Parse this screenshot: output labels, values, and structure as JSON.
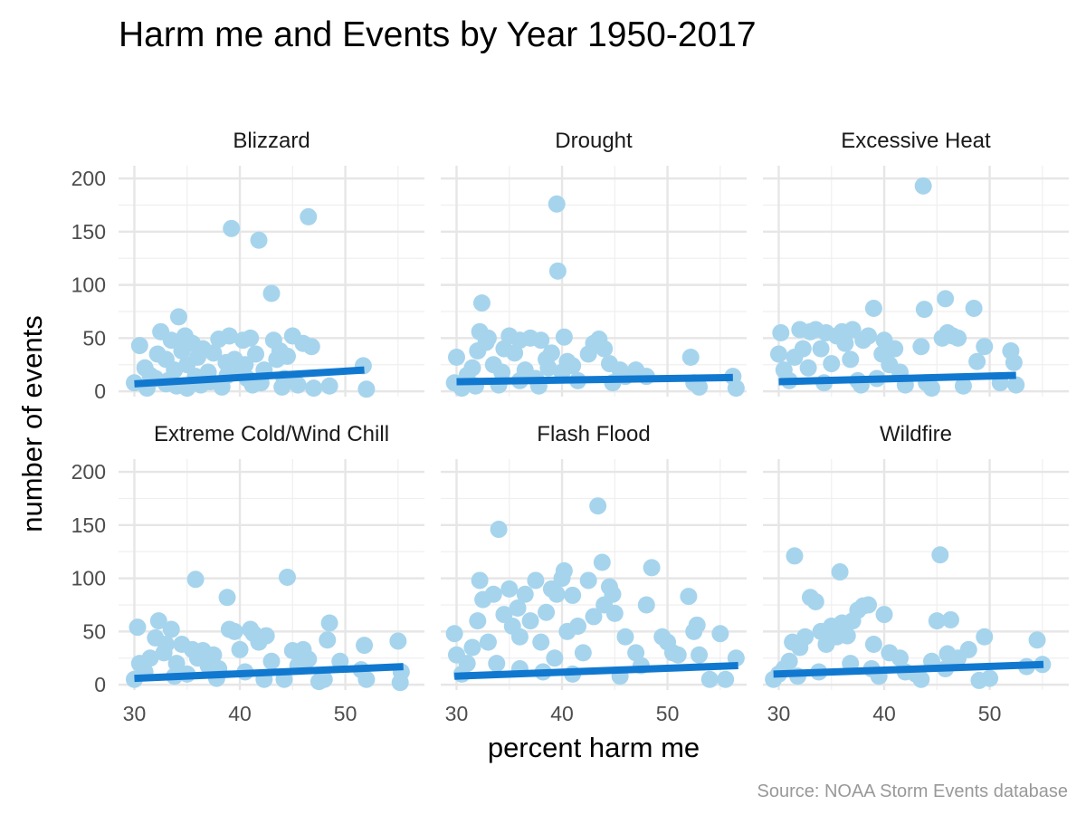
{
  "chart_data": {
    "type": "scatter",
    "title": "Harm me and Events by Year 1950-2017",
    "xlabel": "percent harm me",
    "ylabel": "number of events",
    "caption": "Source: NOAA Storm Events database",
    "xlim": [
      28.5,
      57.5
    ],
    "ylim": [
      -5,
      212
    ],
    "x_ticks": [
      30,
      40,
      50
    ],
    "y_ticks": [
      0,
      50,
      100,
      150,
      200
    ],
    "grid": true,
    "legend": "none",
    "colors": {
      "points": "#a6d4ed",
      "trend_line": "#1178cf",
      "grid": "#e6e6e6"
    },
    "panels": [
      {
        "name": "Blizzard",
        "points": [
          [
            30,
            8
          ],
          [
            30.5,
            43
          ],
          [
            31,
            22
          ],
          [
            31.2,
            3
          ],
          [
            31.5,
            15
          ],
          [
            32,
            12
          ],
          [
            32.2,
            35
          ],
          [
            32.5,
            56
          ],
          [
            33,
            30
          ],
          [
            33.2,
            10
          ],
          [
            33.5,
            48
          ],
          [
            33.8,
            20
          ],
          [
            34,
            5
          ],
          [
            34.2,
            70
          ],
          [
            34.5,
            38
          ],
          [
            34.8,
            52
          ],
          [
            35,
            25
          ],
          [
            35.5,
            45
          ],
          [
            35.8,
            14
          ],
          [
            36,
            32
          ],
          [
            36.5,
            40
          ],
          [
            37,
            18
          ],
          [
            37.5,
            36
          ],
          [
            38,
            49
          ],
          [
            38.3,
            4
          ],
          [
            38.7,
            27
          ],
          [
            39,
            52
          ],
          [
            39.2,
            153
          ],
          [
            39.5,
            30
          ],
          [
            40,
            20
          ],
          [
            40.3,
            48
          ],
          [
            40.7,
            12
          ],
          [
            41,
            50
          ],
          [
            41.5,
            35
          ],
          [
            41.8,
            142
          ],
          [
            42,
            8
          ],
          [
            42.3,
            20
          ],
          [
            43,
            92
          ],
          [
            43.2,
            48
          ],
          [
            43.5,
            30
          ],
          [
            43.8,
            38
          ],
          [
            44.2,
            12
          ],
          [
            44.5,
            33
          ],
          [
            45,
            52
          ],
          [
            45.5,
            6
          ],
          [
            46,
            45
          ],
          [
            46.5,
            164
          ],
          [
            46.8,
            42
          ],
          [
            47,
            3
          ],
          [
            48.5,
            5
          ],
          [
            51.7,
            24
          ],
          [
            52,
            2
          ],
          [
            36.3,
            6
          ],
          [
            37.2,
            9
          ],
          [
            38.8,
            15
          ],
          [
            41.2,
            6
          ],
          [
            40.5,
            25
          ],
          [
            33,
            7
          ],
          [
            35,
            3
          ],
          [
            44,
            4
          ]
        ],
        "trend": {
          "x": [
            30,
            51.8
          ],
          "y": [
            7,
            20
          ]
        }
      },
      {
        "name": "Drought",
        "points": [
          [
            29.8,
            8
          ],
          [
            30,
            32
          ],
          [
            30.5,
            3
          ],
          [
            31,
            15
          ],
          [
            31.5,
            22
          ],
          [
            32,
            38
          ],
          [
            32.2,
            56
          ],
          [
            32.4,
            83
          ],
          [
            32.8,
            46
          ],
          [
            33,
            50
          ],
          [
            33.5,
            25
          ],
          [
            34,
            6
          ],
          [
            34.5,
            40
          ],
          [
            35,
            52
          ],
          [
            35.5,
            36
          ],
          [
            36,
            48
          ],
          [
            36.5,
            20
          ],
          [
            37,
            50
          ],
          [
            37.5,
            12
          ],
          [
            38,
            48
          ],
          [
            38.5,
            30
          ],
          [
            39,
            36
          ],
          [
            39.5,
            176
          ],
          [
            39.6,
            113
          ],
          [
            40,
            18
          ],
          [
            40.2,
            51
          ],
          [
            40.5,
            28
          ],
          [
            41,
            24
          ],
          [
            42.5,
            35
          ],
          [
            43,
            45
          ],
          [
            43.5,
            49
          ],
          [
            44,
            40
          ],
          [
            44.5,
            26
          ],
          [
            45.5,
            20
          ],
          [
            46,
            14
          ],
          [
            47,
            20
          ],
          [
            48,
            14
          ],
          [
            52.2,
            32
          ],
          [
            52.5,
            8
          ],
          [
            53,
            4
          ],
          [
            56.2,
            14
          ],
          [
            56.5,
            3
          ],
          [
            36,
            10
          ],
          [
            37.8,
            5
          ],
          [
            41.5,
            10
          ],
          [
            38.7,
            22
          ],
          [
            34.3,
            18
          ],
          [
            31.8,
            5
          ],
          [
            44.8,
            8
          ]
        ],
        "trend": {
          "x": [
            30,
            56.2
          ],
          "y": [
            9,
            13
          ]
        }
      },
      {
        "name": "Excessive Heat",
        "points": [
          [
            30,
            35
          ],
          [
            30.2,
            55
          ],
          [
            30.5,
            20
          ],
          [
            31,
            10
          ],
          [
            31.5,
            32
          ],
          [
            32,
            58
          ],
          [
            32.3,
            40
          ],
          [
            32.8,
            22
          ],
          [
            33,
            56
          ],
          [
            33.5,
            58
          ],
          [
            34,
            40
          ],
          [
            34.5,
            55
          ],
          [
            35,
            26
          ],
          [
            35.5,
            52
          ],
          [
            36,
            56
          ],
          [
            36.3,
            45
          ],
          [
            36.8,
            30
          ],
          [
            37,
            58
          ],
          [
            37.5,
            10
          ],
          [
            38,
            48
          ],
          [
            38.5,
            52
          ],
          [
            39,
            78
          ],
          [
            39.3,
            12
          ],
          [
            39.8,
            35
          ],
          [
            40,
            48
          ],
          [
            40.5,
            25
          ],
          [
            41,
            40
          ],
          [
            43.5,
            42
          ],
          [
            43.7,
            193
          ],
          [
            43.8,
            77
          ],
          [
            44,
            8
          ],
          [
            45.5,
            50
          ],
          [
            45.8,
            87
          ],
          [
            46,
            55
          ],
          [
            46.5,
            52
          ],
          [
            47,
            50
          ],
          [
            48.5,
            78
          ],
          [
            48.8,
            28
          ],
          [
            49.5,
            42
          ],
          [
            51,
            8
          ],
          [
            52,
            38
          ],
          [
            52.3,
            27
          ],
          [
            52.5,
            6
          ],
          [
            37.8,
            6
          ],
          [
            42,
            6
          ],
          [
            44.5,
            3
          ],
          [
            34.3,
            8
          ],
          [
            41.5,
            18
          ],
          [
            47.5,
            5
          ]
        ],
        "trend": {
          "x": [
            30,
            52.5
          ],
          "y": [
            9,
            15
          ]
        }
      },
      {
        "name": "Extreme Cold/Wind Chill",
        "points": [
          [
            30,
            5
          ],
          [
            30.3,
            54
          ],
          [
            30.5,
            20
          ],
          [
            31,
            12
          ],
          [
            31.5,
            25
          ],
          [
            32,
            44
          ],
          [
            32.3,
            60
          ],
          [
            32.8,
            30
          ],
          [
            33,
            38
          ],
          [
            33.5,
            52
          ],
          [
            34,
            20
          ],
          [
            34.5,
            38
          ],
          [
            35,
            10
          ],
          [
            35.5,
            33
          ],
          [
            35.8,
            99
          ],
          [
            36,
            25
          ],
          [
            36.5,
            32
          ],
          [
            37,
            18
          ],
          [
            37.5,
            28
          ],
          [
            38,
            15
          ],
          [
            38.8,
            82
          ],
          [
            39,
            52
          ],
          [
            39.5,
            50
          ],
          [
            40,
            33
          ],
          [
            40.5,
            12
          ],
          [
            41,
            52
          ],
          [
            41.3,
            48
          ],
          [
            41.8,
            40
          ],
          [
            42.5,
            46
          ],
          [
            43,
            22
          ],
          [
            44.2,
            5
          ],
          [
            44.5,
            101
          ],
          [
            45,
            32
          ],
          [
            45.5,
            18
          ],
          [
            46,
            33
          ],
          [
            46.5,
            24
          ],
          [
            47.5,
            3
          ],
          [
            48,
            5
          ],
          [
            48.3,
            42
          ],
          [
            48.5,
            58
          ],
          [
            49.5,
            22
          ],
          [
            51.5,
            14
          ],
          [
            51.8,
            37
          ],
          [
            52,
            5
          ],
          [
            55,
            41
          ],
          [
            55.2,
            2
          ],
          [
            55.3,
            12
          ],
          [
            33.8,
            8
          ],
          [
            37.8,
            6
          ],
          [
            42.3,
            5
          ]
        ],
        "trend": {
          "x": [
            30,
            55.5
          ],
          "y": [
            6,
            17
          ]
        }
      },
      {
        "name": "Flash Flood",
        "points": [
          [
            29.8,
            48
          ],
          [
            30,
            28
          ],
          [
            30.5,
            10
          ],
          [
            31,
            20
          ],
          [
            31.5,
            35
          ],
          [
            32,
            60
          ],
          [
            32.2,
            98
          ],
          [
            32.5,
            80
          ],
          [
            33,
            40
          ],
          [
            33.5,
            85
          ],
          [
            34,
            146
          ],
          [
            34.5,
            66
          ],
          [
            35,
            90
          ],
          [
            35.3,
            55
          ],
          [
            35.8,
            72
          ],
          [
            36,
            45
          ],
          [
            36.5,
            85
          ],
          [
            37,
            60
          ],
          [
            37.5,
            98
          ],
          [
            38,
            40
          ],
          [
            38.5,
            68
          ],
          [
            39,
            90
          ],
          [
            39.5,
            85
          ],
          [
            40,
            100
          ],
          [
            40.2,
            107
          ],
          [
            40.5,
            50
          ],
          [
            41,
            84
          ],
          [
            41.5,
            55
          ],
          [
            42,
            30
          ],
          [
            42.5,
            98
          ],
          [
            43,
            64
          ],
          [
            43.4,
            168
          ],
          [
            43.8,
            115
          ],
          [
            44,
            75
          ],
          [
            44.5,
            92
          ],
          [
            44.8,
            85
          ],
          [
            45,
            67
          ],
          [
            46,
            45
          ],
          [
            47,
            30
          ],
          [
            47.5,
            18
          ],
          [
            48,
            75
          ],
          [
            48.5,
            110
          ],
          [
            49.5,
            45
          ],
          [
            50,
            40
          ],
          [
            50.5,
            30
          ],
          [
            51,
            28
          ],
          [
            52,
            83
          ],
          [
            52.5,
            50
          ],
          [
            52.8,
            56
          ],
          [
            53,
            28
          ],
          [
            54,
            5
          ],
          [
            55,
            48
          ],
          [
            55.5,
            5
          ],
          [
            56.5,
            25
          ],
          [
            36,
            15
          ],
          [
            38.2,
            12
          ],
          [
            41,
            10
          ],
          [
            45.5,
            8
          ],
          [
            33.8,
            20
          ],
          [
            39.3,
            25
          ]
        ],
        "trend": {
          "x": [
            29.8,
            56.7
          ],
          "y": [
            8,
            18
          ]
        }
      },
      {
        "name": "Wildfire",
        "points": [
          [
            29.5,
            5
          ],
          [
            30,
            10
          ],
          [
            30.5,
            15
          ],
          [
            31,
            22
          ],
          [
            31.3,
            40
          ],
          [
            31.5,
            121
          ],
          [
            32,
            35
          ],
          [
            32.5,
            45
          ],
          [
            33,
            82
          ],
          [
            33.5,
            78
          ],
          [
            34,
            50
          ],
          [
            34.5,
            38
          ],
          [
            35,
            55
          ],
          [
            35.5,
            45
          ],
          [
            35.8,
            106
          ],
          [
            36,
            58
          ],
          [
            36.5,
            46
          ],
          [
            37,
            60
          ],
          [
            37.5,
            70
          ],
          [
            38,
            74
          ],
          [
            38.5,
            75
          ],
          [
            39,
            38
          ],
          [
            40,
            66
          ],
          [
            40.5,
            30
          ],
          [
            41.5,
            25
          ],
          [
            42,
            12
          ],
          [
            43,
            10
          ],
          [
            44.5,
            22
          ],
          [
            45,
            60
          ],
          [
            45.3,
            122
          ],
          [
            45.8,
            15
          ],
          [
            46,
            29
          ],
          [
            46.3,
            61
          ],
          [
            47,
            25
          ],
          [
            48,
            33
          ],
          [
            49,
            4
          ],
          [
            49.5,
            45
          ],
          [
            50,
            6
          ],
          [
            53.5,
            17
          ],
          [
            54.5,
            42
          ],
          [
            55,
            19
          ],
          [
            33.8,
            12
          ],
          [
            36.8,
            20
          ],
          [
            39.5,
            8
          ],
          [
            43.5,
            5
          ],
          [
            31.8,
            8
          ],
          [
            38.8,
            15
          ]
        ],
        "trend": {
          "x": [
            29.5,
            55.1
          ],
          "y": [
            10,
            19
          ]
        }
      }
    ]
  }
}
